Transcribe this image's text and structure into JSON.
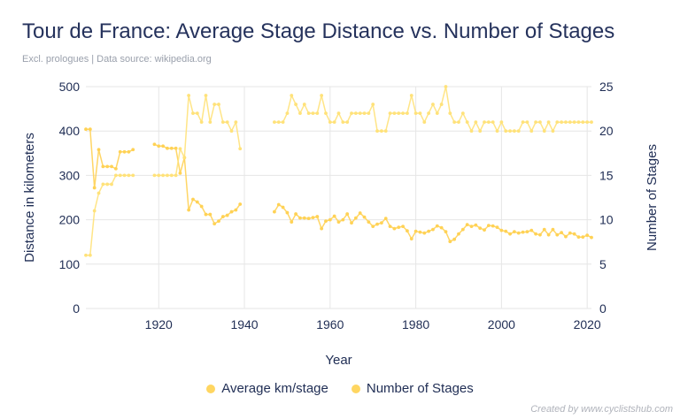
{
  "title": "Tour de France: Average Stage Distance vs. Number of Stages",
  "subtitle": "Excl. prologues | Data source: wikipedia.org",
  "credit": "Created by www.cyclistshub.com",
  "colors": {
    "km": "#ffd255",
    "stages": "#ffe27a",
    "text": "#1f2d54"
  },
  "chart_data": {
    "type": "line",
    "xlabel": "Year",
    "ylabel": "Distance in kilometers",
    "y2label": "Number of Stages",
    "xlim": [
      1903,
      2021
    ],
    "ylim": [
      0,
      500
    ],
    "y2lim": [
      0,
      25
    ],
    "x_ticks": [
      1920,
      1940,
      1960,
      1980,
      2000,
      2020
    ],
    "y_ticks": [
      0,
      100,
      200,
      300,
      400,
      500
    ],
    "y2_ticks": [
      0,
      5,
      10,
      15,
      20,
      25
    ],
    "grid": true,
    "legend_position": "bottom",
    "series": [
      {
        "name": "Average km/stage",
        "axis": "left",
        "x": [
          1903,
          1904,
          1905,
          1906,
          1907,
          1908,
          1909,
          1910,
          1911,
          1912,
          1913,
          1914,
          1919,
          1920,
          1921,
          1922,
          1923,
          1924,
          1925,
          1926,
          1927,
          1928,
          1929,
          1930,
          1931,
          1932,
          1933,
          1934,
          1935,
          1936,
          1937,
          1938,
          1939,
          1947,
          1948,
          1949,
          1950,
          1951,
          1952,
          1953,
          1954,
          1955,
          1956,
          1957,
          1958,
          1959,
          1960,
          1961,
          1962,
          1963,
          1964,
          1965,
          1966,
          1967,
          1968,
          1969,
          1970,
          1971,
          1972,
          1973,
          1974,
          1975,
          1976,
          1977,
          1978,
          1979,
          1980,
          1981,
          1982,
          1983,
          1984,
          1985,
          1986,
          1987,
          1988,
          1989,
          1990,
          1991,
          1992,
          1993,
          1994,
          1995,
          1996,
          1997,
          1998,
          1999,
          2000,
          2001,
          2002,
          2003,
          2004,
          2005,
          2006,
          2007,
          2008,
          2009,
          2010,
          2011,
          2012,
          2013,
          2014,
          2015,
          2016,
          2017,
          2018,
          2019,
          2020,
          2021
        ],
        "values": [
          404,
          404,
          272,
          358,
          320,
          320,
          320,
          315,
          353,
          353,
          353,
          358,
          370,
          366,
          366,
          361,
          361,
          361,
          305,
          340,
          222,
          246,
          240,
          230,
          212,
          212,
          191,
          197,
          207,
          210,
          218,
          222,
          235,
          218,
          234,
          228,
          216,
          195,
          213,
          204,
          204,
          203,
          205,
          207,
          180,
          197,
          200,
          208,
          195,
          200,
          213,
          193,
          204,
          215,
          206,
          195,
          185,
          190,
          193,
          203,
          185,
          180,
          183,
          185,
          175,
          157,
          174,
          172,
          170,
          174,
          178,
          186,
          182,
          173,
          151,
          156,
          168,
          178,
          189,
          185,
          188,
          181,
          177,
          187,
          186,
          183,
          176,
          174,
          168,
          173,
          170,
          172,
          173,
          176,
          168,
          166,
          178,
          166,
          178,
          166,
          171,
          162,
          170,
          168,
          161,
          161,
          165,
          160
        ]
      },
      {
        "name": "Number of Stages",
        "axis": "right",
        "x": [
          1903,
          1904,
          1905,
          1906,
          1907,
          1908,
          1909,
          1910,
          1911,
          1912,
          1913,
          1914,
          1919,
          1920,
          1921,
          1922,
          1923,
          1924,
          1925,
          1926,
          1927,
          1928,
          1929,
          1930,
          1931,
          1932,
          1933,
          1934,
          1935,
          1936,
          1937,
          1938,
          1939,
          1947,
          1948,
          1949,
          1950,
          1951,
          1952,
          1953,
          1954,
          1955,
          1956,
          1957,
          1958,
          1959,
          1960,
          1961,
          1962,
          1963,
          1964,
          1965,
          1966,
          1967,
          1968,
          1969,
          1970,
          1971,
          1972,
          1973,
          1974,
          1975,
          1976,
          1977,
          1978,
          1979,
          1980,
          1981,
          1982,
          1983,
          1984,
          1985,
          1986,
          1987,
          1988,
          1989,
          1990,
          1991,
          1992,
          1993,
          1994,
          1995,
          1996,
          1997,
          1998,
          1999,
          2000,
          2001,
          2002,
          2003,
          2004,
          2005,
          2006,
          2007,
          2008,
          2009,
          2010,
          2011,
          2012,
          2013,
          2014,
          2015,
          2016,
          2017,
          2018,
          2019,
          2020,
          2021
        ],
        "values": [
          6,
          6,
          11,
          13,
          14,
          14,
          14,
          15,
          15,
          15,
          15,
          15,
          15,
          15,
          15,
          15,
          15,
          15,
          18,
          17,
          24,
          22,
          22,
          21,
          24,
          21,
          23,
          23,
          21,
          21,
          20,
          21,
          18,
          21,
          21,
          21,
          22,
          24,
          23,
          22,
          23,
          22,
          22,
          22,
          24,
          22,
          21,
          21,
          22,
          21,
          21,
          22,
          22,
          22,
          22,
          22,
          23,
          20,
          20,
          20,
          22,
          22,
          22,
          22,
          22,
          24,
          22,
          22,
          21,
          22,
          23,
          22,
          23,
          25,
          22,
          21,
          21,
          22,
          21,
          20,
          21,
          20,
          21,
          21,
          21,
          20,
          21,
          20,
          20,
          20,
          20,
          21,
          21,
          20,
          21,
          21,
          20,
          21,
          20,
          21,
          21,
          21,
          21,
          21,
          21,
          21,
          21,
          21
        ]
      }
    ]
  }
}
